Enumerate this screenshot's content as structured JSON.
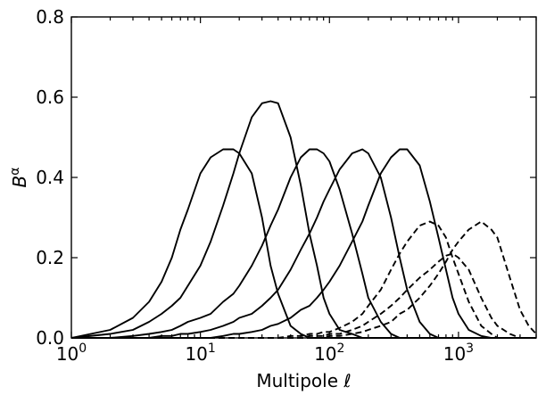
{
  "chart_data": {
    "type": "line",
    "xlabel": "Multipole ℓ",
    "ylabel": "B^α",
    "ylabel_base": "B",
    "ylabel_sup": "α",
    "xscale": "log",
    "xlim": [
      1,
      4000
    ],
    "ylim": [
      0,
      0.8
    ],
    "grid": false,
    "x_ticks": [
      {
        "value": 1,
        "base": "10",
        "exp": "0"
      },
      {
        "value": 10,
        "base": "10",
        "exp": "1"
      },
      {
        "value": 100,
        "base": "10",
        "exp": "2"
      },
      {
        "value": 1000,
        "base": "10",
        "exp": "3"
      }
    ],
    "y_ticks": [
      {
        "value": 0.0,
        "label": "0.0"
      },
      {
        "value": 0.2,
        "label": "0.2"
      },
      {
        "value": 0.4,
        "label": "0.4"
      },
      {
        "value": 0.6,
        "label": "0.6"
      },
      {
        "value": 0.8,
        "label": "0.8"
      }
    ],
    "x": [
      1,
      2,
      3,
      4,
      5,
      6,
      7,
      8,
      10,
      12,
      15,
      18,
      20,
      25,
      30,
      35,
      40,
      50,
      60,
      70,
      80,
      90,
      100,
      120,
      150,
      180,
      200,
      250,
      300,
      350,
      400,
      500,
      600,
      700,
      800,
      900,
      1000,
      1200,
      1500,
      1800,
      2000,
      2500,
      3000,
      3500,
      4000
    ],
    "series": [
      {
        "style": "solid",
        "values": [
          0,
          0.02,
          0.05,
          0.09,
          0.14,
          0.2,
          0.27,
          0.32,
          0.41,
          0.45,
          0.47,
          0.47,
          0.46,
          0.41,
          0.3,
          0.18,
          0.11,
          0.03,
          0.01,
          0,
          0,
          0,
          0,
          0,
          0,
          0,
          0,
          0,
          0,
          0,
          0,
          0,
          0,
          0,
          0,
          0,
          0,
          0,
          0,
          0,
          0,
          0,
          0,
          0,
          0
        ]
      },
      {
        "style": "solid",
        "values": [
          0,
          0.01,
          0.02,
          0.04,
          0.06,
          0.08,
          0.1,
          0.13,
          0.18,
          0.24,
          0.33,
          0.41,
          0.46,
          0.55,
          0.585,
          0.59,
          0.585,
          0.5,
          0.38,
          0.26,
          0.18,
          0.1,
          0.06,
          0.02,
          0.01,
          0,
          0,
          0,
          0,
          0,
          0,
          0,
          0,
          0,
          0,
          0,
          0,
          0,
          0,
          0,
          0,
          0,
          0,
          0,
          0
        ]
      },
      {
        "style": "solid",
        "values": [
          0,
          0,
          0.005,
          0.01,
          0.015,
          0.02,
          0.03,
          0.04,
          0.05,
          0.06,
          0.09,
          0.11,
          0.13,
          0.18,
          0.23,
          0.28,
          0.32,
          0.4,
          0.45,
          0.47,
          0.47,
          0.46,
          0.44,
          0.37,
          0.26,
          0.16,
          0.1,
          0.04,
          0.01,
          0,
          0,
          0,
          0,
          0,
          0,
          0,
          0,
          0,
          0,
          0,
          0,
          0,
          0,
          0,
          0
        ]
      },
      {
        "style": "solid",
        "values": [
          0,
          0,
          0,
          0,
          0.005,
          0.005,
          0.01,
          0.01,
          0.015,
          0.02,
          0.03,
          0.04,
          0.05,
          0.06,
          0.08,
          0.1,
          0.12,
          0.17,
          0.22,
          0.26,
          0.3,
          0.34,
          0.37,
          0.42,
          0.46,
          0.47,
          0.46,
          0.4,
          0.3,
          0.2,
          0.12,
          0.04,
          0.01,
          0,
          0,
          0,
          0,
          0,
          0,
          0,
          0,
          0,
          0,
          0,
          0
        ]
      },
      {
        "style": "solid",
        "values": [
          0,
          0,
          0,
          0,
          0,
          0,
          0,
          0,
          0,
          0,
          0.005,
          0.01,
          0.01,
          0.015,
          0.02,
          0.03,
          0.035,
          0.05,
          0.07,
          0.08,
          0.1,
          0.12,
          0.14,
          0.18,
          0.24,
          0.29,
          0.33,
          0.41,
          0.45,
          0.47,
          0.47,
          0.43,
          0.34,
          0.25,
          0.17,
          0.1,
          0.06,
          0.02,
          0.005,
          0,
          0,
          0,
          0,
          0,
          0
        ]
      },
      {
        "style": "dashed",
        "values": [
          0,
          0,
          0,
          0,
          0,
          0,
          0,
          0,
          0,
          0,
          0,
          0,
          0,
          0,
          0,
          0,
          0,
          0.005,
          0.005,
          0.01,
          0.01,
          0.015,
          0.015,
          0.025,
          0.04,
          0.06,
          0.08,
          0.12,
          0.17,
          0.21,
          0.24,
          0.28,
          0.29,
          0.28,
          0.25,
          0.2,
          0.16,
          0.09,
          0.03,
          0.01,
          0,
          0,
          0,
          0,
          0
        ]
      },
      {
        "style": "dashed",
        "values": [
          0,
          0,
          0,
          0,
          0,
          0,
          0,
          0,
          0,
          0,
          0,
          0,
          0,
          0,
          0,
          0,
          0,
          0,
          0,
          0.005,
          0.005,
          0.005,
          0.01,
          0.01,
          0.02,
          0.03,
          0.04,
          0.06,
          0.08,
          0.1,
          0.12,
          0.15,
          0.17,
          0.19,
          0.205,
          0.21,
          0.2,
          0.17,
          0.1,
          0.05,
          0.03,
          0.01,
          0,
          0,
          0
        ]
      },
      {
        "style": "dashed",
        "values": [
          0,
          0,
          0,
          0,
          0,
          0,
          0,
          0,
          0,
          0,
          0,
          0,
          0,
          0,
          0,
          0,
          0,
          0,
          0,
          0,
          0,
          0,
          0.005,
          0.005,
          0.01,
          0.015,
          0.02,
          0.03,
          0.04,
          0.06,
          0.07,
          0.1,
          0.13,
          0.16,
          0.19,
          0.22,
          0.24,
          0.27,
          0.29,
          0.27,
          0.25,
          0.15,
          0.07,
          0.03,
          0.01
        ]
      }
    ]
  }
}
